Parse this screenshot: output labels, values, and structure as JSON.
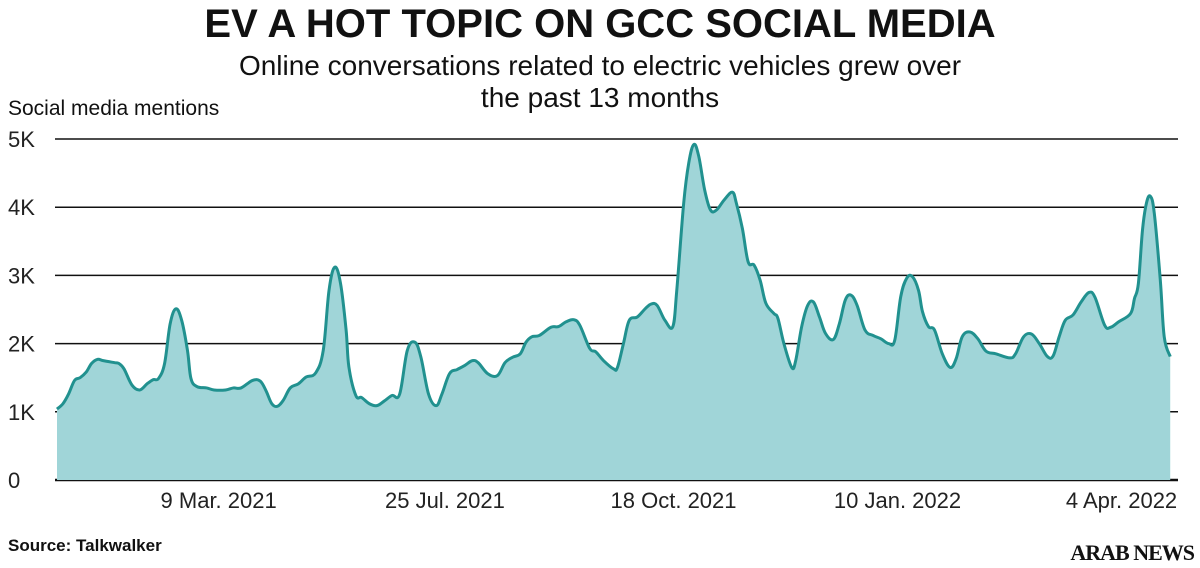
{
  "chart_data": {
    "type": "area",
    "title": "EV A HOT TOPIC ON GCC SOCIAL MEDIA",
    "subtitle_lines": [
      "Online conversations related to electric vehicles grew over",
      "the past 13 months"
    ],
    "ylabel": "Social media mentions",
    "xlabel": "",
    "x_unit": "days from start of series (approx.)",
    "xlim": [
      0,
      482
    ],
    "ylim": [
      0,
      5
    ],
    "y_unit": "thousands",
    "y_ticks": [
      0,
      1,
      2,
      3,
      4,
      5
    ],
    "y_tick_labels": [
      "0",
      "1K",
      "2K",
      "3K",
      "4K",
      "5K"
    ],
    "x_ticks": [
      70,
      168,
      267,
      364,
      461
    ],
    "x_tick_labels": [
      "9 Mar. 2021",
      "25 Jul. 2021",
      "18 Oct. 2021",
      "10 Jan. 2022",
      "4 Apr. 2022"
    ],
    "grid": true,
    "legend": "none",
    "series": [
      {
        "name": "Social media mentions",
        "color": "#21918f",
        "fill": "#a0d5d8",
        "x": [
          0,
          2.6,
          5,
          7.6,
          10,
          12.6,
          15,
          17.6,
          20,
          25,
          26.7,
          29,
          32.5,
          35.8,
          39,
          41.6,
          44,
          46.6,
          49,
          51.5,
          54,
          56.5,
          58,
          60.6,
          64.8,
          68,
          73,
          76.4,
          79.7,
          84.7,
          88,
          90.5,
          93,
          95.4,
          98,
          101,
          104.5,
          107.9,
          112,
          115.3,
          117.8,
          120.3,
          122.8,
          125.2,
          126.4,
          129.4,
          131.9,
          135.2,
          138.5,
          141.8,
          145.1,
          148.4,
          151.7,
          155,
          157.6,
          160.9,
          164.2,
          166.7,
          170,
          173.3,
          176.6,
          179.9,
          182.4,
          186.5,
          190.7,
          194,
          197.3,
          200.6,
          203.1,
          205.6,
          208.9,
          213.9,
          217.2,
          220.5,
          223.8,
          226.4,
          230.7,
          233.3,
          236.7,
          241,
          242.7,
          245.3,
          247.8,
          251.3,
          254.7,
          257.3,
          259.9,
          263.3,
          266.7,
          268.4,
          271.4,
          273.6,
          275.8,
          277.9,
          280.5,
          283,
          285.6,
          289,
          292.5,
          294.2,
          296.8,
          299.3,
          301.9,
          304.5,
          307,
          310.5,
          312.2,
          314.8,
          318.2,
          319.9,
          322.5,
          325.1,
          327.6,
          330.2,
          332.8,
          336.2,
          338.8,
          341.4,
          343.9,
          346.5,
          349.9,
          353.4,
          356.8,
          360.2,
          362.8,
          365.4,
          368,
          370.5,
          373.1,
          374.8,
          377.4,
          380,
          383.4,
          386.8,
          389.4,
          392,
          395.4,
          398.8,
          402.3,
          406.6,
          412.6,
          415.1,
          418.6,
          422,
          425.4,
          428.9,
          431.4,
          434,
          436.6,
          440,
          443.5,
          446.9,
          449.5,
          453.7,
          456.3,
          459.8,
          464.9,
          466.6,
          468.3,
          470.1,
          471.8,
          473.5,
          475.2,
          477.8,
          479.5,
          482.1
        ],
        "values": [
          1.04,
          1.12,
          1.26,
          1.46,
          1.5,
          1.58,
          1.71,
          1.77,
          1.75,
          1.72,
          1.71,
          1.63,
          1.39,
          1.32,
          1.41,
          1.47,
          1.49,
          1.71,
          2.29,
          2.51,
          2.34,
          1.9,
          1.49,
          1.37,
          1.35,
          1.32,
          1.32,
          1.35,
          1.35,
          1.46,
          1.45,
          1.31,
          1.12,
          1.08,
          1.17,
          1.35,
          1.41,
          1.51,
          1.57,
          1.9,
          2.78,
          3.12,
          2.88,
          2.2,
          1.66,
          1.24,
          1.21,
          1.12,
          1.09,
          1.16,
          1.24,
          1.26,
          1.9,
          2.02,
          1.8,
          1.26,
          1.09,
          1.26,
          1.56,
          1.62,
          1.68,
          1.75,
          1.72,
          1.56,
          1.53,
          1.72,
          1.8,
          1.85,
          2.02,
          2.1,
          2.12,
          2.24,
          2.25,
          2.32,
          2.35,
          2.27,
          1.93,
          1.88,
          1.75,
          1.63,
          1.65,
          2.0,
          2.34,
          2.39,
          2.51,
          2.58,
          2.56,
          2.34,
          2.25,
          2.78,
          4.06,
          4.65,
          4.92,
          4.75,
          4.25,
          3.96,
          3.96,
          4.11,
          4.22,
          4.06,
          3.69,
          3.2,
          3.15,
          2.93,
          2.59,
          2.44,
          2.37,
          2.0,
          1.65,
          1.75,
          2.25,
          2.56,
          2.61,
          2.39,
          2.15,
          2.06,
          2.29,
          2.64,
          2.71,
          2.56,
          2.2,
          2.12,
          2.07,
          2.0,
          2.05,
          2.69,
          2.96,
          2.98,
          2.78,
          2.47,
          2.25,
          2.2,
          1.85,
          1.65,
          1.78,
          2.1,
          2.17,
          2.07,
          1.89,
          1.85,
          1.79,
          1.85,
          2.1,
          2.14,
          2.0,
          1.81,
          1.82,
          2.1,
          2.34,
          2.42,
          2.61,
          2.75,
          2.68,
          2.27,
          2.24,
          2.32,
          2.44,
          2.66,
          2.88,
          3.67,
          4.06,
          4.16,
          3.91,
          2.93,
          2.1,
          1.81
        ]
      }
    ]
  },
  "footer": {
    "source": "Source: Talkwalker",
    "logo_text": "ARAB NEWS"
  }
}
